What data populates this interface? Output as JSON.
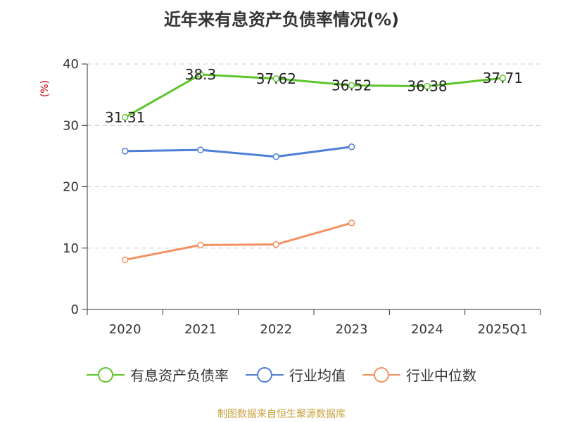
{
  "chart_data": {
    "type": "line",
    "title": "近年来有息资产负债率情况(%)",
    "ylabel": "(%)",
    "categories": [
      "2020",
      "2021",
      "2022",
      "2023",
      "2024",
      "2025Q1"
    ],
    "ylim": [
      0,
      40
    ],
    "yticks": [
      0,
      10,
      20,
      30,
      40
    ],
    "grid": true,
    "legend_position": "bottom",
    "series": [
      {
        "name": "有息资产负债率",
        "color": "#5ec42b",
        "values": [
          31.31,
          38.3,
          37.62,
          36.52,
          36.38,
          37.71
        ],
        "labels": [
          "31.31",
          "38.3",
          "37.62",
          "36.52",
          "36.38",
          "37.71"
        ]
      },
      {
        "name": "行业均值",
        "color": "#4e7fd6",
        "values": [
          25.8,
          26.0,
          24.9,
          26.5,
          null,
          null
        ]
      },
      {
        "name": "行业中位数",
        "color": "#f39162",
        "values": [
          8.1,
          10.5,
          10.6,
          14.1,
          null,
          null
        ]
      }
    ]
  },
  "source_text": "制图数据来自恒生聚源数据库",
  "colors": {
    "source": "#c8a13f",
    "unit": "#cc0000",
    "axis": "#333333",
    "grid": "#cccccc"
  }
}
